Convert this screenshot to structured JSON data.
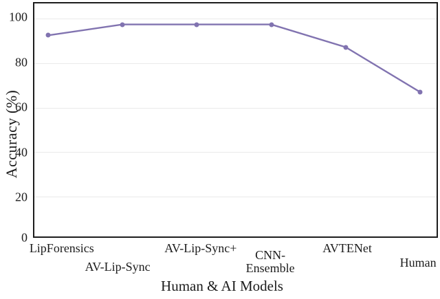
{
  "chart_data": {
    "type": "line",
    "title": "",
    "xlabel": "Human & AI Models",
    "ylabel": "Accuracy (%)",
    "categories": [
      "LipForensics",
      "AV-Lip-Sync",
      "AV-Lip-Sync+",
      "CNN-Ensemble",
      "AVTENet",
      "Human"
    ],
    "category_display_lines": [
      [
        "LipForensics"
      ],
      [
        "AV-Lip-Sync"
      ],
      [
        "AV-Lip-Sync+"
      ],
      [
        "CNN-",
        "Ensemble"
      ],
      [
        "AVTENet"
      ],
      [
        "Human"
      ]
    ],
    "values": [
      92.5,
      97.4,
      97.4,
      97.4,
      87.2,
      67
    ],
    "series_name": "Accuracy",
    "y_ticks": [
      0,
      20,
      40,
      60,
      80,
      100
    ],
    "ylim": [
      0,
      107
    ],
    "grid": "horizontal",
    "legend_position": "none",
    "marker": "circle",
    "line_color": "#8173b0",
    "marker_color": "#8173b0",
    "gridline_color": "#eaeaea",
    "border_color": "#1c1c1c"
  }
}
